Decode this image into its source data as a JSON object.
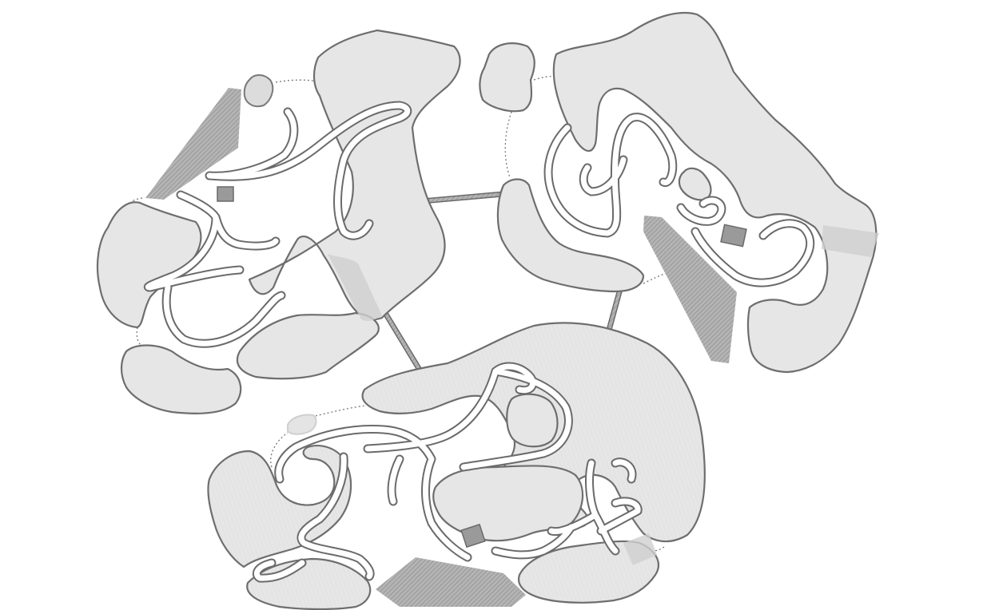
{
  "map": {
    "palette": {
      "background": "#ffffff",
      "rock": "#e6e6e6",
      "outline": "#6e6e6e",
      "ramp": "#a8a8a8",
      "path": "#ffffff"
    },
    "islands": [
      {
        "id": "west",
        "features": [
          "cliffs",
          "winding-path",
          "ramp",
          "stone-marker"
        ]
      },
      {
        "id": "east",
        "features": [
          "cliffs",
          "winding-path",
          "ramp",
          "stone-marker"
        ]
      },
      {
        "id": "south",
        "features": [
          "cliffs",
          "winding-path",
          "ramp",
          "stone-marker",
          "pale-stone"
        ]
      }
    ],
    "bridges": [
      {
        "from": "west",
        "to": "east"
      },
      {
        "from": "west",
        "to": "south"
      },
      {
        "from": "east",
        "to": "south"
      }
    ]
  }
}
